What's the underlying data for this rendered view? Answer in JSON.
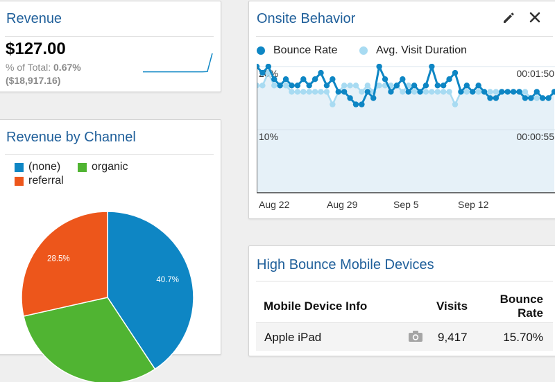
{
  "revenue": {
    "title": "Revenue",
    "value": "$127.00",
    "pct_label": "% of Total:",
    "pct_value": "0.67%",
    "total": "($18,917.16)"
  },
  "channel": {
    "title": "Revenue by Channel",
    "legend": [
      {
        "label": "(none)",
        "color": "#0e86c4"
      },
      {
        "label": "organic",
        "color": "#50b432"
      },
      {
        "label": "referral",
        "color": "#ed561b"
      }
    ]
  },
  "onsite": {
    "title": "Onsite Behavior",
    "edit_icon": "pencil-icon",
    "close_icon": "close-icon",
    "series_labels": [
      "Bounce Rate",
      "Avg. Visit Duration"
    ],
    "colors": {
      "bounce": "#0e86c4",
      "duration": "#a8dbf2",
      "fill": "#e6f1f8"
    }
  },
  "devices": {
    "title": "High Bounce Mobile Devices",
    "headers": {
      "device": "Mobile Device Info",
      "visits": "Visits",
      "bounce_l1": "Bounce",
      "bounce_l2": "Rate"
    },
    "rows": [
      {
        "device": "Apple iPad",
        "icon": "camera-icon",
        "visits": "9,417",
        "bounce": "15.70%"
      }
    ]
  },
  "chart_data": [
    {
      "type": "line",
      "title": "Onsite Behavior",
      "x_tick_labels": [
        "Aug 22",
        "Aug 29",
        "Sep 5",
        "Sep 12"
      ],
      "left_axis_labels": [
        "20%",
        "10%"
      ],
      "right_axis_labels": [
        "00:01:50",
        "00:00:55"
      ],
      "left_axis": {
        "ticks": [
          0.2,
          0.1
        ],
        "ylim": [
          0,
          0.2
        ]
      },
      "series": [
        {
          "name": "Bounce Rate",
          "axis": "left",
          "values": [
            0.2,
            0.19,
            0.2,
            0.18,
            0.17,
            0.18,
            0.17,
            0.17,
            0.18,
            0.17,
            0.18,
            0.19,
            0.17,
            0.18,
            0.16,
            0.16,
            0.15,
            0.14,
            0.14,
            0.16,
            0.15,
            0.2,
            0.18,
            0.16,
            0.17,
            0.18,
            0.16,
            0.17,
            0.16,
            0.17,
            0.2,
            0.17,
            0.17,
            0.18,
            0.19,
            0.16,
            0.17,
            0.16,
            0.17,
            0.16,
            0.15,
            0.15,
            0.16,
            0.16,
            0.16,
            0.16,
            0.15,
            0.15,
            0.16,
            0.15,
            0.15,
            0.16
          ]
        },
        {
          "name": "Avg. Visit Duration",
          "axis": "right",
          "values": [
            0.17,
            0.17,
            0.19,
            0.17,
            0.17,
            0.17,
            0.16,
            0.16,
            0.16,
            0.16,
            0.16,
            0.16,
            0.16,
            0.14,
            0.16,
            0.17,
            0.17,
            0.17,
            0.16,
            0.17,
            0.16,
            0.17,
            0.17,
            0.17,
            0.17,
            0.16,
            0.17,
            0.16,
            0.16,
            0.16,
            0.16,
            0.16,
            0.16,
            0.16,
            0.14,
            0.16,
            0.16,
            0.16,
            0.16,
            0.16,
            0.16,
            0.16,
            0.16,
            0.16,
            0.16,
            0.16,
            0.16,
            0.15,
            0.15,
            0.15,
            0.15,
            0.16
          ]
        }
      ]
    },
    {
      "type": "pie",
      "title": "Revenue by Channel",
      "slices": [
        {
          "label": "(none)",
          "value": 40.7,
          "data_label": "40.7%",
          "color": "#0e86c4"
        },
        {
          "label": "organic",
          "value": 30.8,
          "data_label": "",
          "color": "#50b432"
        },
        {
          "label": "referral",
          "value": 28.5,
          "data_label": "28.5%",
          "color": "#ed561b"
        }
      ]
    },
    {
      "type": "line",
      "title": "Revenue sparkline",
      "values": [
        0.05,
        0.05,
        0.05,
        0.05,
        0.05,
        0.05,
        0.05,
        0.05,
        0.05,
        0.05,
        0.05,
        0.05,
        0.05,
        0.06,
        1.0
      ],
      "color": "#0e86c4"
    }
  ]
}
